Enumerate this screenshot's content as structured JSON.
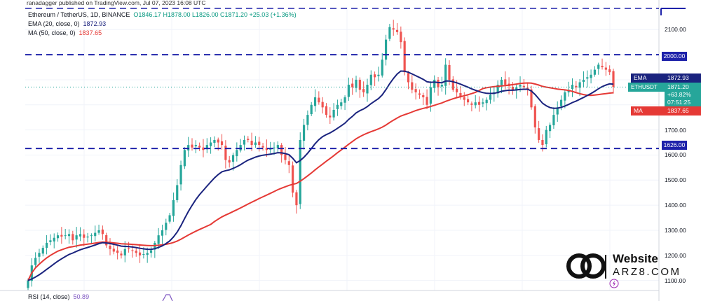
{
  "attribution": "ranadagger published on TradingView.com, Jul 07, 2023 16:08 UTC",
  "header": {
    "symbol": "Ethereum / TetherUS, 1D, BINANCE",
    "ohlc": "O1846.17  H1878.00  L1826.00  C1871.20  +25.03 (+1.36%)",
    "ema_label": "EMA (20, close, 0)",
    "ema_value": "1872.93",
    "ma_label": "MA (50, close, 0)",
    "ma_value": "1837.65"
  },
  "tags": {
    "ema": {
      "label": "EMA",
      "value": "1872.93",
      "color": "#1a237e"
    },
    "last": {
      "label": "ETHUSDT",
      "price": "1871.20",
      "change": "+63.82%",
      "countdown": "07:51:25",
      "color": "#26a69a"
    },
    "ma": {
      "label": "MA",
      "value": "1837.65",
      "color": "#e53935"
    }
  },
  "levels": [
    {
      "price": 2000,
      "label": "2000.00"
    },
    {
      "price": 1626,
      "label": "1626.00"
    }
  ],
  "rsi": {
    "label": "RSI (14, close)",
    "value": "50.89"
  },
  "watermark": {
    "title": "Website",
    "subtitle": "ARZ8.COM"
  },
  "chart_data": {
    "type": "candlestick",
    "yticks": [
      "2100.00",
      "1900.00",
      "1800.00",
      "1700.00",
      "1600.00",
      "1500.00",
      "1400.00",
      "1300.00",
      "1200.00",
      "1100.00"
    ],
    "ylim": [
      1060,
      2190
    ],
    "up_color": "#26a69a",
    "down_color": "#ef5350",
    "close": [
      1100,
      1160,
      1190,
      1210,
      1230,
      1250,
      1260,
      1270,
      1280,
      1275,
      1280,
      1285,
      1260,
      1280,
      1285,
      1270,
      1275,
      1280,
      1290,
      1300,
      1285,
      1240,
      1225,
      1215,
      1210,
      1200,
      1225,
      1225,
      1220,
      1210,
      1200,
      1205,
      1210,
      1220,
      1250,
      1280,
      1300,
      1330,
      1360,
      1420,
      1480,
      1560,
      1620,
      1640,
      1630,
      1640,
      1630,
      1620,
      1640,
      1650,
      1660,
      1650,
      1640,
      1580,
      1570,
      1600,
      1620,
      1640,
      1660,
      1660,
      1640,
      1650,
      1640,
      1630,
      1620,
      1625,
      1630,
      1640,
      1600,
      1580,
      1560,
      1450,
      1400,
      1660,
      1720,
      1760,
      1800,
      1830,
      1810,
      1790,
      1760,
      1750,
      1780,
      1800,
      1810,
      1830,
      1880,
      1870,
      1900,
      1860,
      1850,
      1880,
      1920,
      1910,
      1920,
      1980,
      2060,
      2110,
      2100,
      2090,
      2050,
      1930,
      1890,
      1860,
      1850,
      1840,
      1830,
      1800,
      1870,
      1900,
      1870,
      1880,
      1960,
      1900,
      1860,
      1850,
      1830,
      1820,
      1810,
      1800,
      1810,
      1800,
      1810,
      1820,
      1840,
      1850,
      1880,
      1900,
      1880,
      1875,
      1860,
      1870,
      1880,
      1870,
      1860,
      1790,
      1710,
      1660,
      1640,
      1700,
      1720,
      1760,
      1790,
      1820,
      1850,
      1860,
      1880,
      1870,
      1890,
      1900,
      1910,
      1920,
      1940,
      1960,
      1950,
      1940,
      1930,
      1871
    ]
  }
}
